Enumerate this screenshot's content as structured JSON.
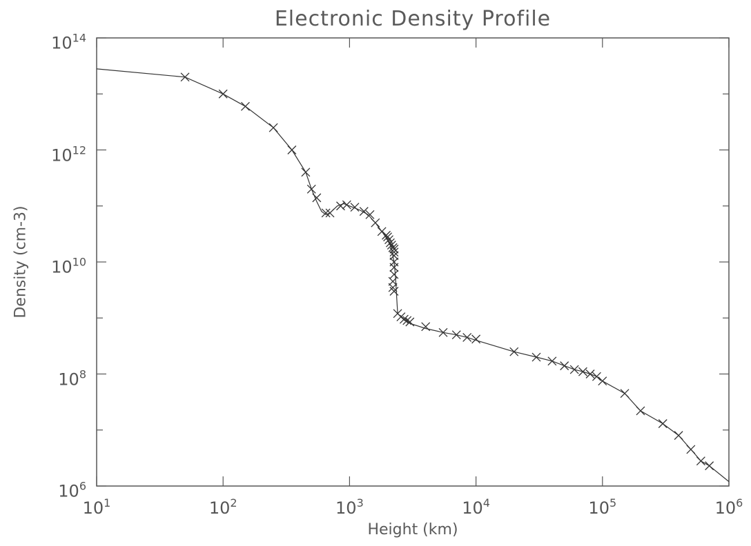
{
  "chart_data": {
    "type": "line",
    "title": "Electronic Density Profile",
    "xlabel": "Height (km)",
    "ylabel": "Density (cm-3)",
    "xscale": "log",
    "yscale": "log",
    "xlim": [
      10,
      1000000
    ],
    "ylim": [
      1000000,
      100000000000000
    ],
    "grid": false,
    "marker": "x",
    "xticks": [
      {
        "base": "10",
        "exp": "1",
        "value": 10
      },
      {
        "base": "10",
        "exp": "2",
        "value": 100
      },
      {
        "base": "10",
        "exp": "3",
        "value": 1000
      },
      {
        "base": "10",
        "exp": "4",
        "value": 10000
      },
      {
        "base": "10",
        "exp": "5",
        "value": 100000
      },
      {
        "base": "10",
        "exp": "6",
        "value": 1000000
      }
    ],
    "yticks": [
      {
        "base": "10",
        "exp": "6",
        "value": 1000000
      },
      {
        "base": "10",
        "exp": "8",
        "value": 100000000
      },
      {
        "base": "10",
        "exp": "10",
        "value": 10000000000
      },
      {
        "base": "10",
        "exp": "12",
        "value": 1000000000000
      },
      {
        "base": "10",
        "exp": "14",
        "value": 100000000000000
      }
    ],
    "line": {
      "x": [
        10,
        50,
        100,
        150,
        250,
        350,
        450,
        500,
        550,
        600,
        650,
        700,
        800,
        900,
        1000,
        1200,
        1400,
        1600,
        1800,
        2000,
        2050,
        2100,
        2150,
        2200,
        2250,
        2300,
        2400,
        2600,
        2800,
        3000,
        4000,
        5500,
        7000,
        8500,
        10000,
        20000,
        30000,
        40000,
        50000,
        60000,
        70000,
        80000,
        90000,
        100000,
        150000,
        200000,
        300000,
        400000,
        500000,
        600000,
        700000,
        1000000
      ],
      "y": [
        28000000000000,
        20000000000000,
        10000000000000,
        6000000000000,
        2500000000000,
        1000000000000,
        400000000000,
        200000000000,
        120000000000,
        80000000000,
        70000000000,
        75000000000,
        100000000000,
        110000000000,
        100000000000,
        85000000000,
        70000000000,
        50000000000,
        35000000000,
        25000000000,
        22000000000,
        20000000000,
        17000000000,
        13000000000,
        10000000000,
        6000000000,
        1200000000,
        1000000000,
        900000000,
        800000000,
        650000000,
        550000000,
        500000000,
        450000000,
        400000000,
        250000000,
        200000000,
        170000000,
        140000000,
        120000000,
        110000000,
        100000000,
        90000000,
        75000000,
        45000000,
        22000000,
        13000000,
        8000000,
        4500000,
        2800000,
        2300000,
        1200000
      ]
    },
    "markers": {
      "x": [
        50,
        100,
        150,
        250,
        350,
        450,
        500,
        550,
        650,
        700,
        850,
        950,
        1100,
        1300,
        1450,
        1600,
        1800,
        1950,
        2000,
        2050,
        2100,
        2150,
        2200,
        2250,
        2250,
        2250,
        2250,
        2250,
        2250,
        2200,
        2200,
        2250,
        2400,
        2550,
        2700,
        2850,
        3000,
        4000,
        5500,
        7000,
        8500,
        10000,
        20000,
        30000,
        40000,
        50000,
        60000,
        70000,
        80000,
        90000,
        100000,
        150000,
        200000,
        300000,
        400000,
        500000,
        600000,
        700000
      ],
      "y": [
        20000000000000,
        10000000000000,
        6000000000000,
        2500000000000,
        1000000000000,
        400000000000,
        200000000000,
        140000000000,
        75000000000,
        75000000000,
        100000000000,
        105000000000,
        95000000000,
        80000000000,
        70000000000,
        50000000000,
        35000000000,
        30000000000,
        28000000000,
        25000000000,
        22000000000,
        20000000000,
        18000000000,
        17000000000,
        15000000000,
        13000000000,
        10000000000,
        8000000000,
        6000000000,
        4500000000,
        3500000000,
        3000000000,
        1200000000,
        1050000000,
        950000000,
        900000000,
        850000000,
        700000000,
        550000000,
        500000000,
        450000000,
        420000000,
        250000000,
        200000000,
        170000000,
        140000000,
        120000000,
        110000000,
        100000000,
        90000000,
        75000000,
        45000000,
        22000000,
        13000000,
        8000000,
        4500000,
        2800000,
        2300000
      ]
    }
  }
}
